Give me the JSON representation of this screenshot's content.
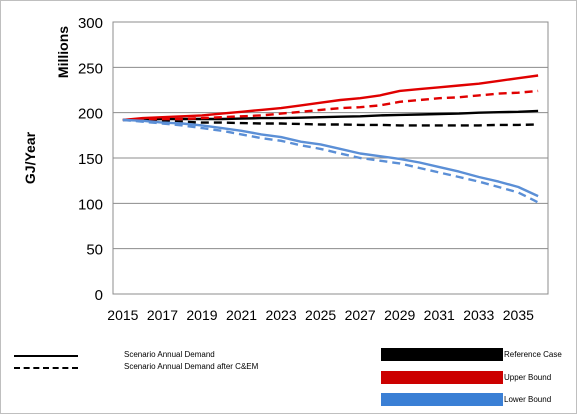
{
  "chart_data": {
    "type": "line",
    "xlabel": "",
    "ylabel": "GJ/Year",
    "yunit": "Millions",
    "ylim": [
      0,
      300
    ],
    "yticks": [
      0,
      50,
      100,
      150,
      200,
      250,
      300
    ],
    "xticks": [
      2015,
      2017,
      2019,
      2021,
      2023,
      2025,
      2027,
      2029,
      2031,
      2033,
      2035
    ],
    "xlim": [
      2014.5,
      2036.5
    ],
    "x": [
      2015,
      2016,
      2017,
      2018,
      2019,
      2020,
      2021,
      2022,
      2023,
      2024,
      2025,
      2026,
      2027,
      2028,
      2029,
      2030,
      2031,
      2032,
      2033,
      2034,
      2035,
      2036
    ],
    "grid": "horizontal",
    "series": [
      {
        "scenario": "Reference Case",
        "style": "Scenario Annual Demand",
        "color": "#000000",
        "dash": false,
        "values": [
          192,
          192.5,
          193,
          193,
          193,
          193,
          193.5,
          194,
          194,
          194.5,
          195,
          195.5,
          196,
          197,
          197.5,
          198,
          198.5,
          199,
          200,
          200.5,
          201,
          202
        ]
      },
      {
        "scenario": "Reference Case",
        "style": "Scenario Annual Demand after C&EM",
        "color": "#000000",
        "dash": true,
        "values": [
          192,
          192,
          191,
          190,
          189,
          189,
          188.5,
          188,
          188,
          187.5,
          187,
          187,
          186.5,
          186.5,
          186,
          186,
          186,
          186,
          186,
          186.5,
          186.5,
          187
        ]
      },
      {
        "scenario": "Upper Bound",
        "style": "Scenario Annual Demand",
        "color": "#e00000",
        "dash": false,
        "values": [
          192,
          194,
          195,
          196,
          197,
          199,
          201,
          203,
          205,
          208,
          211,
          214,
          216,
          219,
          224,
          226,
          228,
          230,
          232,
          235,
          238,
          241
        ]
      },
      {
        "scenario": "Upper Bound",
        "style": "Scenario Annual Demand after C&EM",
        "color": "#e00000",
        "dash": true,
        "values": [
          192,
          193,
          193,
          193,
          194,
          195,
          196,
          197,
          199,
          201,
          203,
          205,
          206,
          208,
          212,
          214,
          216,
          217,
          219,
          221,
          222,
          224
        ]
      },
      {
        "scenario": "Lower Bound",
        "style": "Scenario Annual Demand",
        "color": "#5b8fd6",
        "dash": false,
        "values": [
          192,
          191,
          189,
          188,
          186,
          183,
          180,
          176,
          173,
          168,
          165,
          160,
          155,
          152,
          149,
          145,
          140,
          135,
          129,
          124,
          118,
          108
        ]
      },
      {
        "scenario": "Lower Bound",
        "style": "Scenario Annual Demand after C&EM",
        "color": "#5b8fd6",
        "dash": true,
        "values": [
          192,
          190,
          188,
          186,
          183,
          180,
          176,
          172,
          169,
          164,
          160,
          155,
          150,
          147,
          144,
          139,
          134,
          129,
          124,
          118,
          112,
          101
        ]
      }
    ],
    "line_legend": [
      {
        "label": "Scenario Annual Demand",
        "dash": false
      },
      {
        "label": "Scenario Annual Demand after C&EM",
        "dash": true
      }
    ],
    "color_legend": [
      {
        "label": "Reference Case",
        "color": "#000000"
      },
      {
        "label": "Upper Bound",
        "color": "#cc0000"
      },
      {
        "label": "Lower Bound",
        "color": "#3a7fd5"
      }
    ]
  }
}
